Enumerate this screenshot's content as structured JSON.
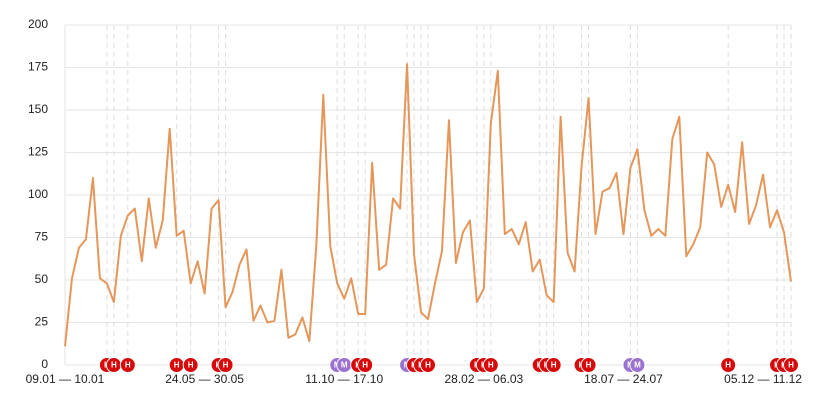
{
  "chart_data": {
    "type": "line",
    "categories": [
      "09.01 — 10.01",
      null,
      null,
      null,
      null,
      null,
      null,
      null,
      null,
      null,
      null,
      null,
      null,
      null,
      null,
      null,
      null,
      null,
      null,
      null,
      "24.05 — 30.05",
      null,
      null,
      null,
      null,
      null,
      null,
      null,
      null,
      null,
      null,
      null,
      null,
      null,
      null,
      null,
      null,
      null,
      null,
      null,
      "11.10 — 17.10",
      null,
      null,
      null,
      null,
      null,
      null,
      null,
      null,
      null,
      null,
      null,
      null,
      null,
      null,
      null,
      null,
      null,
      null,
      null,
      "28.02 — 06.03",
      null,
      null,
      null,
      null,
      null,
      null,
      null,
      null,
      null,
      null,
      null,
      null,
      null,
      null,
      null,
      null,
      null,
      null,
      null,
      "18.07 — 24.07",
      null,
      null,
      null,
      null,
      null,
      null,
      null,
      null,
      null,
      null,
      null,
      null,
      null,
      null,
      null,
      null,
      null,
      null,
      null,
      "05.12 — 11.12",
      null,
      null,
      null,
      null
    ],
    "values": [
      11,
      51,
      69,
      74,
      110,
      51,
      48,
      37,
      76,
      88,
      92,
      61,
      98,
      69,
      85,
      139,
      76,
      79,
      48,
      61,
      42,
      92,
      97,
      34,
      43,
      59,
      68,
      26,
      35,
      25,
      26,
      56,
      16,
      18,
      28,
      14,
      70,
      159,
      70,
      48,
      39,
      51,
      30,
      30,
      119,
      56,
      59,
      98,
      92,
      177,
      65,
      31,
      27,
      48,
      67,
      144,
      60,
      78,
      85,
      37,
      45,
      142,
      173,
      77,
      80,
      71,
      84,
      55,
      62,
      41,
      37,
      146,
      66,
      55,
      117,
      157,
      77,
      102,
      104,
      113,
      77,
      116,
      127,
      91,
      76,
      80,
      76,
      133,
      146,
      64,
      71,
      81,
      125,
      118,
      93,
      106,
      90,
      131,
      83,
      94,
      112,
      81,
      91,
      78,
      49
    ],
    "color": "#e5975b",
    "ylim": [
      0,
      200
    ],
    "yticks": [
      0,
      25,
      50,
      75,
      100,
      125,
      150,
      175,
      200
    ],
    "grid": true,
    "events": [
      {
        "x": 6,
        "label": "H",
        "color": "#d60a0a"
      },
      {
        "x": 7,
        "label": "H",
        "color": "#d60a0a"
      },
      {
        "x": 9,
        "label": "H",
        "color": "#d60a0a"
      },
      {
        "x": 16,
        "label": "H",
        "color": "#d60a0a"
      },
      {
        "x": 18,
        "label": "H",
        "color": "#d60a0a"
      },
      {
        "x": 22,
        "label": "H",
        "color": "#d60a0a"
      },
      {
        "x": 23,
        "label": "H",
        "color": "#d60a0a"
      },
      {
        "x": 39,
        "label": "M",
        "color": "#9b72cf"
      },
      {
        "x": 40,
        "label": "M",
        "color": "#9b72cf"
      },
      {
        "x": 42,
        "label": "H",
        "color": "#d60a0a"
      },
      {
        "x": 43,
        "label": "H",
        "color": "#d60a0a"
      },
      {
        "x": 49,
        "label": "M",
        "color": "#9b72cf"
      },
      {
        "x": 50,
        "label": "H",
        "color": "#d60a0a"
      },
      {
        "x": 51,
        "label": "H",
        "color": "#d60a0a"
      },
      {
        "x": 52,
        "label": "H",
        "color": "#d60a0a"
      },
      {
        "x": 59,
        "label": "H",
        "color": "#d60a0a"
      },
      {
        "x": 60,
        "label": "H",
        "color": "#d60a0a"
      },
      {
        "x": 61,
        "label": "H",
        "color": "#d60a0a"
      },
      {
        "x": 68,
        "label": "H",
        "color": "#d60a0a"
      },
      {
        "x": 69,
        "label": "H",
        "color": "#d60a0a"
      },
      {
        "x": 70,
        "label": "H",
        "color": "#d60a0a"
      },
      {
        "x": 74,
        "label": "H",
        "color": "#d60a0a"
      },
      {
        "x": 75,
        "label": "H",
        "color": "#d60a0a"
      },
      {
        "x": 81,
        "label": "M",
        "color": "#9b72cf"
      },
      {
        "x": 82,
        "label": "M",
        "color": "#9b72cf"
      },
      {
        "x": 95,
        "label": "H",
        "color": "#d60a0a"
      },
      {
        "x": 102,
        "label": "H",
        "color": "#d60a0a"
      },
      {
        "x": 103,
        "label": "H",
        "color": "#d60a0a"
      },
      {
        "x": 104,
        "label": "H",
        "color": "#d60a0a"
      }
    ]
  }
}
